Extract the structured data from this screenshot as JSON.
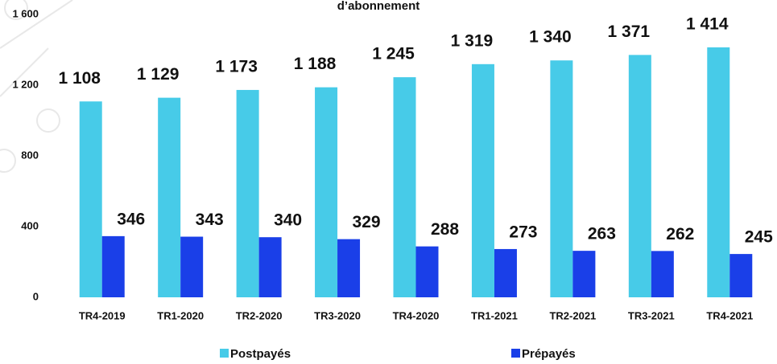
{
  "chart_data": {
    "type": "bar",
    "title": "d’abonnement",
    "categories": [
      "TR4-2019",
      "TR1-2020",
      "TR2-2020",
      "TR3-2020",
      "TR4-2020",
      "TR1-2021",
      "TR2-2021",
      "TR3-2021",
      "TR4-2021"
    ],
    "series": [
      {
        "name": "Postpayés",
        "color": "#47cbe8",
        "values": [
          1108,
          1129,
          1173,
          1188,
          1245,
          1319,
          1340,
          1371,
          1414
        ],
        "value_labels": [
          "1 108",
          "1 129",
          "1 173",
          "1 188",
          "1 245",
          "1 319",
          "1 340",
          "1 371",
          "1 414"
        ]
      },
      {
        "name": "Prépayés",
        "color": "#1a3fe8",
        "values": [
          346,
          343,
          340,
          329,
          288,
          273,
          263,
          262,
          245
        ],
        "value_labels": [
          "346",
          "343",
          "340",
          "329",
          "288",
          "273",
          "263",
          "262",
          "245"
        ]
      }
    ],
    "ylim": [
      0,
      1600
    ],
    "yticks": [
      0,
      400,
      800,
      {
        "value": 1200,
        "label": "1 200"
      },
      {
        "value": 1600,
        "label": "1 600"
      }
    ],
    "grid": false,
    "legend": "bottom"
  }
}
